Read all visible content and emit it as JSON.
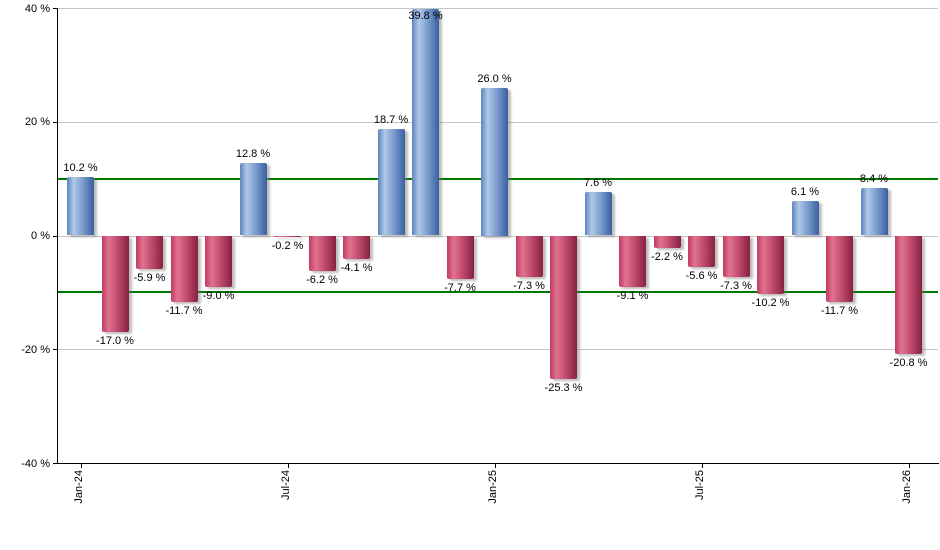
{
  "chart_data": {
    "type": "bar",
    "title": "",
    "xlabel": "",
    "ylabel": "",
    "ylim": [
      -40,
      40
    ],
    "grid": true,
    "values": [
      10.2,
      -17.0,
      -5.9,
      -11.7,
      -9.0,
      12.8,
      -0.2,
      -6.2,
      -4.1,
      18.7,
      39.8,
      -7.7,
      26.0,
      -7.3,
      -25.3,
      7.6,
      -9.1,
      -2.2,
      -5.6,
      -7.3,
      -10.2,
      6.1,
      -11.7,
      8.4,
      -20.8
    ],
    "bar_labels": [
      "10.2 %",
      "-17.0 %",
      "-5.9 %",
      "-11.7 %",
      "-9.0 %",
      "12.8 %",
      "-0.2 %",
      "-6.2 %",
      "-4.1 %",
      "18.7 %",
      "39.8 %",
      "-7.7 %",
      "26.0 %",
      "-7.3 %",
      "-25.3 %",
      "7.6 %",
      "-9.1 %",
      "-2.2 %",
      "-5.6 %",
      "-7.3 %",
      "-10.2 %",
      "6.1 %",
      "-11.7 %",
      "8.4 %",
      "-20.8 %"
    ],
    "x_ticks": [
      {
        "index": 0,
        "label": "Jan-24"
      },
      {
        "index": 6,
        "label": "Jul-24"
      },
      {
        "index": 12,
        "label": "Jan-25"
      },
      {
        "index": 18,
        "label": "Jul-25"
      },
      {
        "index": 24,
        "label": "Jan-26"
      }
    ],
    "y_ticks": [
      {
        "value": 40,
        "label": "40 %"
      },
      {
        "value": 20,
        "label": "20 %"
      },
      {
        "value": 0,
        "label": "0 %"
      },
      {
        "value": -20,
        "label": "-20 %"
      },
      {
        "value": -40,
        "label": "-40 %"
      }
    ],
    "threshold_lines": [
      10,
      -10
    ],
    "colors": {
      "positive_bar_gradient": [
        "#5e83bd",
        "#b0c9e8",
        "#7fa1d2",
        "#3a5f9f"
      ],
      "negative_bar_gradient": [
        "#c23b63",
        "#e0738f",
        "#c44e70",
        "#872140"
      ],
      "threshold_line": "#007800",
      "gridline": "#c6c6c6",
      "axis": "#000000",
      "label_text": "#000000"
    }
  }
}
